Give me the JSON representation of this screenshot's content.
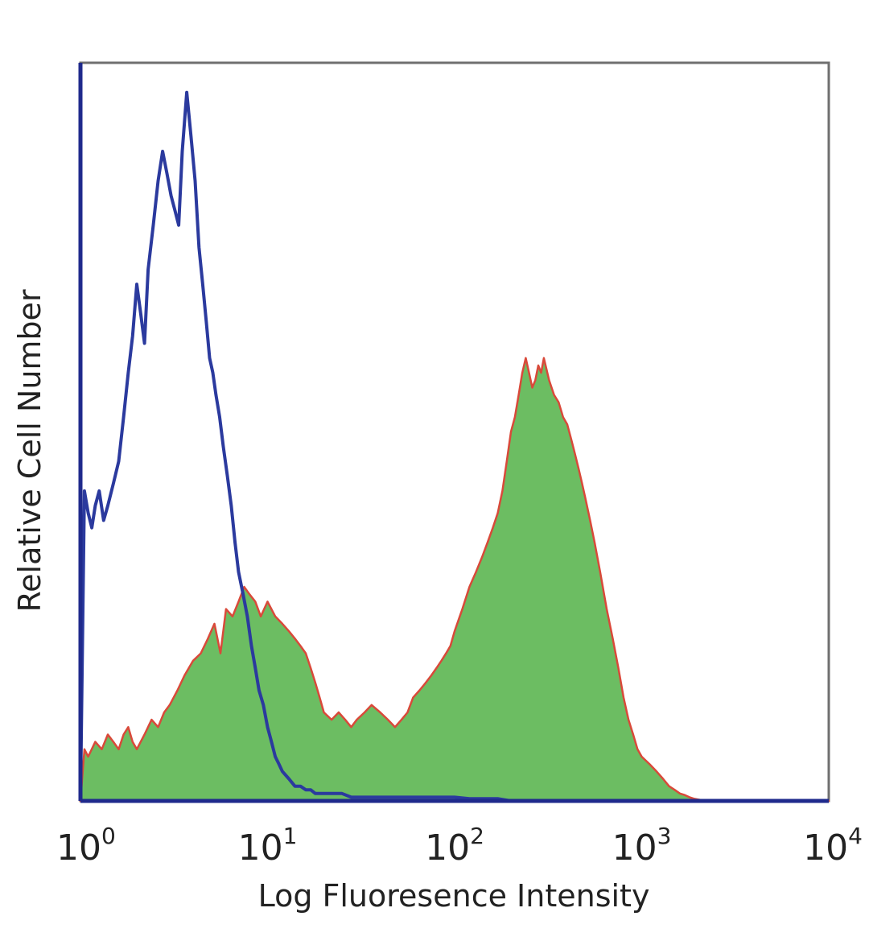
{
  "chart_data": {
    "type": "area",
    "title": "",
    "xlabel": "Log Fluoresence Intensity",
    "ylabel": "Relative Cell Number",
    "x_scale": "log",
    "xlim": [
      1,
      10000
    ],
    "ylim": [
      0,
      100
    ],
    "grid": false,
    "legend": "none",
    "x_ticks": [
      {
        "value": 1,
        "base": "10",
        "exp": "0"
      },
      {
        "value": 10,
        "base": "10",
        "exp": "1"
      },
      {
        "value": 100,
        "base": "10",
        "exp": "2"
      },
      {
        "value": 1000,
        "base": "10",
        "exp": "3"
      },
      {
        "value": 10000,
        "base": "10",
        "exp": "4"
      }
    ],
    "colors": {
      "axis": "#1f2a8c",
      "frame": "#6f6f6f",
      "control_line": "#2b3a9e",
      "sample_fill": "#6cbd62",
      "sample_edge": "#d9493a"
    },
    "series": [
      {
        "style": "line",
        "x": [
          1,
          1.05,
          1.1,
          1.15,
          1.2,
          1.26,
          1.33,
          1.4,
          1.5,
          1.6,
          1.7,
          1.8,
          1.9,
          2.0,
          2.1,
          2.2,
          2.3,
          2.45,
          2.6,
          2.75,
          2.9,
          3.05,
          3.2,
          3.35,
          3.5,
          3.7,
          3.9,
          4.1,
          4.3,
          4.5,
          4.7,
          4.9,
          5.1,
          5.3,
          5.55,
          5.8,
          6.1,
          6.4,
          6.7,
          7.0,
          7.4,
          7.8,
          8.2,
          8.6,
          9.0,
          9.5,
          10,
          10.5,
          11,
          11.5,
          12,
          13,
          14,
          15,
          16,
          17,
          18,
          20,
          22,
          25,
          28,
          30,
          35,
          40,
          45,
          50,
          55,
          60,
          70,
          80,
          100,
          120,
          150,
          170,
          200,
          300,
          500,
          1000,
          10000
        ],
        "y": [
          0,
          42,
          39,
          37,
          40,
          42,
          38,
          40,
          43,
          46,
          52,
          58,
          63,
          70,
          66,
          62,
          72,
          78,
          84,
          88,
          85,
          82,
          80,
          78,
          88,
          96,
          90,
          84,
          75,
          70,
          65,
          60,
          58,
          55,
          52,
          48,
          44,
          40,
          35,
          31,
          28,
          25,
          21,
          18,
          15,
          13,
          10,
          8,
          6,
          5,
          4,
          3,
          2,
          2,
          1.5,
          1.5,
          1,
          1,
          1,
          1,
          0.5,
          0.5,
          0.5,
          0.5,
          0.5,
          0.5,
          0.5,
          0.5,
          0.5,
          0.5,
          0.5,
          0.3,
          0.3,
          0.3,
          0,
          0,
          0,
          0,
          0
        ]
      },
      {
        "style": "filled",
        "x": [
          1,
          1.05,
          1.1,
          1.2,
          1.3,
          1.4,
          1.5,
          1.6,
          1.7,
          1.8,
          1.9,
          2.0,
          2.2,
          2.4,
          2.6,
          2.8,
          3.0,
          3.3,
          3.6,
          4.0,
          4.4,
          4.8,
          5.2,
          5.6,
          6.0,
          6.5,
          7.0,
          7.5,
          8.0,
          8.6,
          9.2,
          10,
          11,
          12,
          13,
          14,
          15,
          16,
          17,
          18,
          19,
          20,
          22,
          24,
          26,
          28,
          30,
          33,
          36,
          40,
          44,
          48,
          52,
          56,
          60,
          65,
          70,
          75,
          80,
          85,
          90,
          95,
          100,
          110,
          120,
          130,
          140,
          150,
          160,
          170,
          180,
          190,
          200,
          210,
          220,
          230,
          240,
          250,
          260,
          270,
          280,
          290,
          300,
          320,
          340,
          360,
          380,
          400,
          420,
          440,
          460,
          480,
          500,
          530,
          560,
          600,
          650,
          700,
          750,
          800,
          850,
          900,
          950,
          1000,
          1100,
          1200,
          1300,
          1400,
          1500,
          1600,
          1700,
          1800,
          1900,
          2000,
          2100,
          2300,
          10000
        ],
        "y": [
          0,
          7,
          6,
          8,
          7,
          9,
          8,
          7,
          9,
          10,
          8,
          7,
          9,
          11,
          10,
          12,
          13,
          15,
          17,
          19,
          20,
          22,
          24,
          20,
          26,
          25,
          27,
          29,
          28,
          27,
          25,
          27,
          25,
          24,
          23,
          22,
          21,
          20,
          18,
          16,
          14,
          12,
          11,
          12,
          11,
          10,
          11,
          12,
          13,
          12,
          11,
          10,
          11,
          12,
          14,
          15,
          16,
          17,
          18,
          19,
          20,
          21,
          23,
          26,
          29,
          31,
          33,
          35,
          37,
          39,
          42,
          46,
          50,
          52,
          55,
          58,
          60,
          58,
          56,
          57,
          59,
          58,
          60,
          57,
          55,
          54,
          52,
          51,
          49,
          47,
          45,
          43,
          41,
          38,
          35,
          31,
          26,
          22,
          18,
          14,
          11,
          9,
          7,
          6,
          5,
          4,
          3,
          2,
          1.5,
          1,
          0.8,
          0.5,
          0.3,
          0.2,
          0.1,
          0,
          0
        ]
      }
    ]
  }
}
